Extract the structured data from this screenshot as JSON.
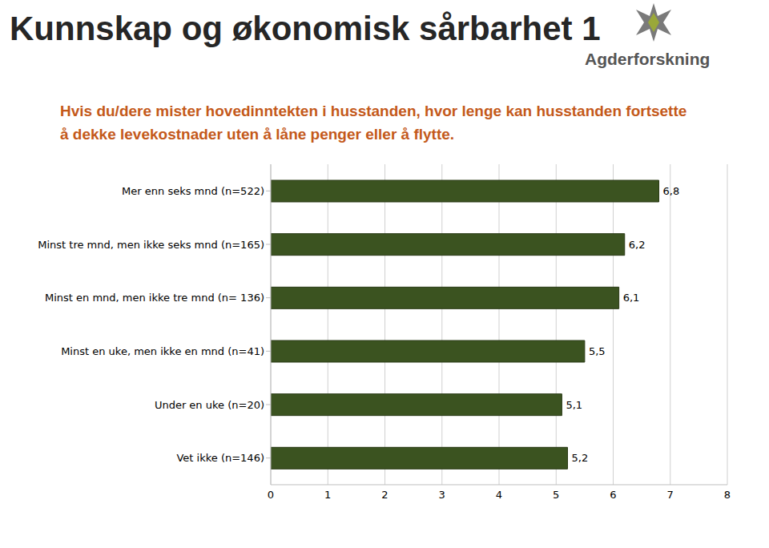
{
  "chart_data": {
    "type": "bar",
    "title": "Kunnskap og økonomisk sårbarhet 1",
    "subtitle": "Hvis du/dere mister hovedinntekten i husstanden, hvor lenge kan husstanden fortsette å dekke levekostnader uten å låne penger eller å flytte.",
    "annotations": [
      "Agderforskning"
    ],
    "orientation": "horizontal",
    "categories": [
      "Mer enn seks mnd (n=522)",
      "Minst tre mnd, men ikke seks mnd (n=165)",
      "Minst en mnd, men ikke tre mnd (n= 136)",
      "Minst en uke, men ikke en mnd (n=41)",
      "Under en uke (n=20)",
      "Vet ikke (n=146)"
    ],
    "values": [
      6.8,
      6.2,
      6.1,
      5.5,
      5.1,
      5.2
    ],
    "value_labels": [
      "6,8",
      "6,2",
      "6,1",
      "5,5",
      "5,1",
      "5,2"
    ],
    "color": "#3b5320",
    "xlim": [
      0,
      8
    ],
    "xticks": [
      0,
      1,
      2,
      3,
      4,
      5,
      6,
      7,
      8
    ],
    "grid": true,
    "data_labels": true
  }
}
